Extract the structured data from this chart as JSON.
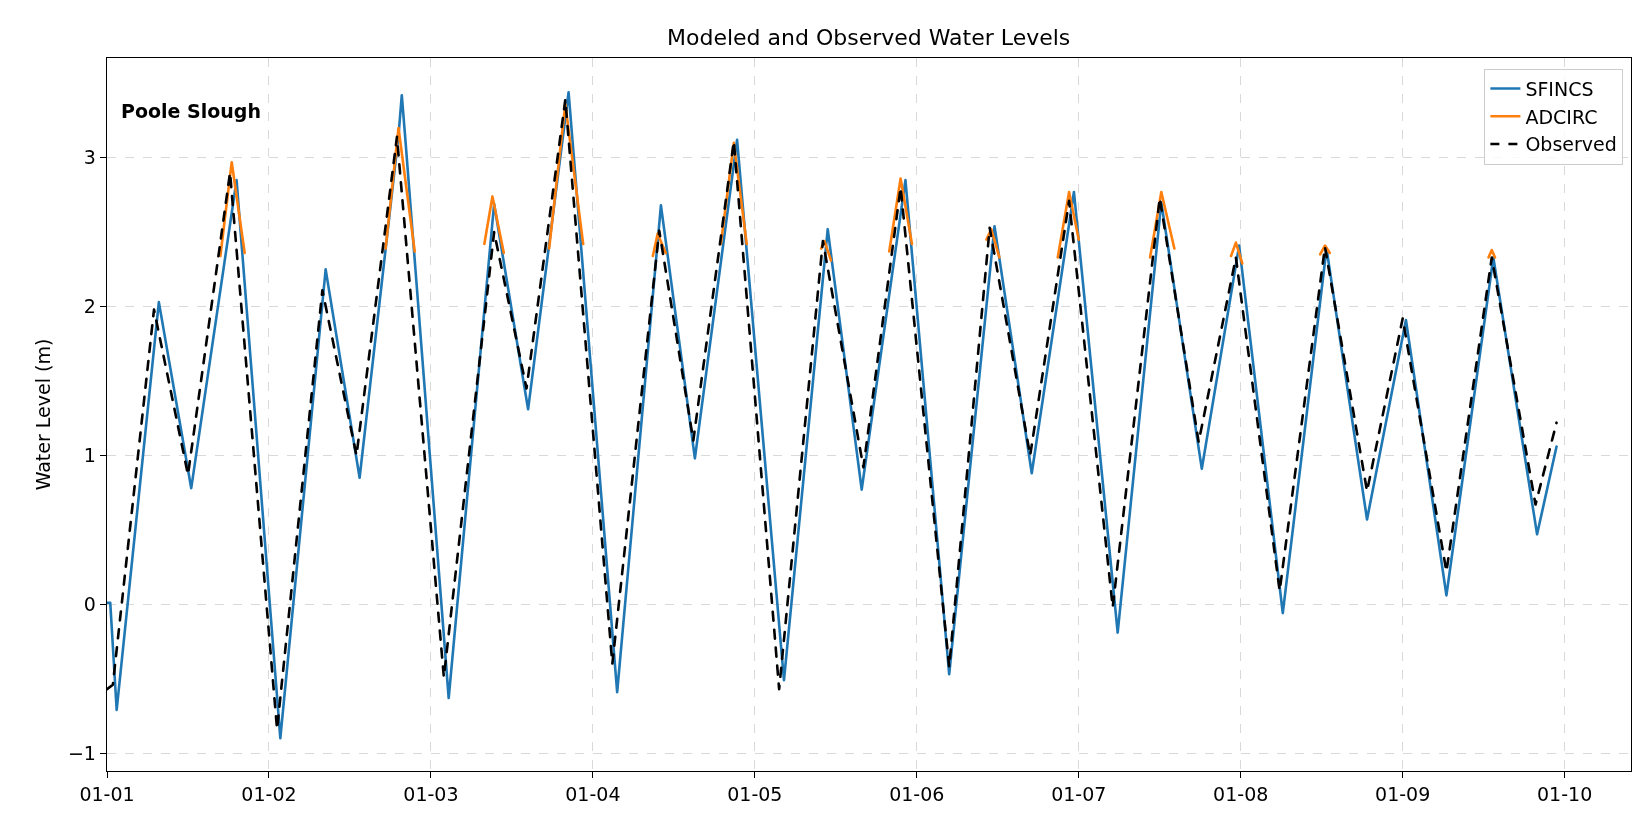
{
  "chart_data": {
    "type": "line",
    "title": "Modeled and Observed Water Levels",
    "ylabel": "Water Level (m)",
    "annotations": [
      "Poole Slough"
    ],
    "xlim": [
      "--01-01T00:00",
      "--01-10T09:50"
    ],
    "xticks": [
      {
        "value": "--01-01",
        "label": "01-01"
      },
      {
        "value": "--01-02",
        "label": "01-02"
      },
      {
        "value": "--01-03",
        "label": "01-03"
      },
      {
        "value": "--01-04",
        "label": "01-04"
      },
      {
        "value": "--01-05",
        "label": "01-05"
      },
      {
        "value": "--01-06",
        "label": "01-06"
      },
      {
        "value": "--01-07",
        "label": "01-07"
      },
      {
        "value": "--01-08",
        "label": "01-08"
      },
      {
        "value": "--01-09",
        "label": "01-09"
      },
      {
        "value": "--01-10",
        "label": "01-10"
      }
    ],
    "ylim": [
      -1.12,
      3.67
    ],
    "yticks": [
      {
        "value": -1,
        "label": "−1"
      },
      0,
      1,
      2,
      3
    ],
    "grid": true,
    "legend": "top right",
    "series": [
      {
        "name": "SFINCS",
        "color": "#1f77b4",
        "line_style": "solid",
        "x": [
          "--01-01T00:00",
          "--01-01T00:29",
          "--01-01T01:26",
          "--01-01T07:41",
          "--01-01T12:29",
          "--01-01T19:12",
          "--01-02T01:41",
          "--01-02T08:24",
          "--01-02T13:26",
          "--01-02T19:12",
          "--01-02T19:41",
          "--01-02T20:10",
          "--01-03T02:38",
          "--01-03T09:22",
          "--01-03T14:24",
          "--01-03T20:24",
          "--01-04T03:36",
          "--01-04T10:05",
          "--01-04T15:07",
          "--01-04T21:22",
          "--01-05T04:19",
          "--01-05T10:48",
          "--01-05T15:50",
          "--01-05T22:19",
          "--01-06T04:48",
          "--01-06T11:31",
          "--01-06T17:02",
          "--01-06T23:17",
          "--01-07T05:46",
          "--01-07T12:14",
          "--01-07T18:14",
          "--01-07T23:46",
          "--01-08T06:14",
          "--01-08T12:43",
          "--01-08T18:43",
          "--01-09T00:29",
          "--01-09T06:29",
          "--01-09T13:26",
          "--01-09T19:55",
          "--01-09T22:48"
        ],
        "values": [
          0.01,
          0.01,
          -0.71,
          2.03,
          0.78,
          2.85,
          -0.9,
          2.25,
          0.85,
          3.15,
          3.42,
          3.15,
          -0.63,
          2.69,
          1.31,
          3.44,
          -0.59,
          2.68,
          0.98,
          3.12,
          -0.51,
          2.52,
          0.77,
          2.85,
          -0.47,
          2.54,
          0.88,
          2.77,
          -0.19,
          2.7,
          0.91,
          2.41,
          -0.06,
          2.39,
          0.57,
          1.91,
          0.06,
          2.33,
          0.47,
          1.06
        ]
      },
      {
        "name": "ADCIRC",
        "color": "#ff7f0e",
        "line_style": "solid",
        "x": [
          "--01-01T16:48",
          "--01-01T18:29",
          "--01-01T20:24",
          "--01-01T20:38",
          "--01-02T17:17",
          "--01-02T19:12",
          "--01-02T21:36",
          "--01-02T21:50",
          "--01-03T07:55",
          "--01-03T09:07",
          "--01-03T10:48",
          "--01-03T11:02",
          "--01-03T17:31",
          "--01-03T19:55",
          "--01-03T22:34",
          "--01-03T22:48",
          "--01-04T08:53",
          "--01-04T09:36",
          "--01-04T10:48",
          "--01-04T11:02",
          "--01-04T18:58",
          "--01-04T20:53",
          "--01-04T22:48",
          "--01-04T23:02",
          "--01-05T09:50",
          "--01-05T10:19",
          "--01-05T11:17",
          "--01-05T11:31",
          "--01-05T19:55",
          "--01-05T21:36",
          "--01-05T23:17",
          "--01-05T23:31",
          "--01-06T10:19",
          "--01-06T11:02",
          "--01-06T12:14",
          "--01-06T12:29",
          "--01-06T20:53",
          "--01-06T22:34",
          "--01-07T00:00",
          "--01-07T00:14",
          "--01-07T10:34",
          "--01-07T12:14",
          "--01-07T14:10",
          "--01-07T14:24",
          "--01-07T22:34",
          "--01-07T23:17",
          "--01-08T00:14",
          "--01-08T00:29",
          "--01-08T11:46",
          "--01-08T12:29",
          "--01-08T13:12",
          "--01-08T13:26",
          "--01-09T12:43",
          "--01-09T13:12",
          "--01-09T13:41"
        ],
        "values": [
          2.34,
          2.97,
          2.36,
          null,
          2.39,
          3.2,
          2.37,
          null,
          2.42,
          2.74,
          2.36,
          null,
          2.39,
          3.36,
          2.42,
          null,
          2.34,
          2.49,
          2.36,
          null,
          2.42,
          3.1,
          2.42,
          null,
          2.39,
          2.44,
          2.31,
          null,
          2.37,
          2.86,
          2.42,
          null,
          2.45,
          2.52,
          2.33,
          null,
          2.33,
          2.77,
          2.45,
          null,
          2.33,
          2.77,
          2.39,
          null,
          2.34,
          2.43,
          2.29,
          null,
          2.35,
          2.41,
          2.36,
          null,
          2.33,
          2.38,
          2.33
        ]
      },
      {
        "name": "Observed",
        "color": "#000000",
        "line_style": "dashed",
        "x": [
          "--01-01T00:00",
          "--01-01T00:52",
          "--01-01T06:58",
          "--01-01T12:00",
          "--01-01T18:14",
          "--01-02T01:12",
          "--01-02T07:55",
          "--01-02T12:58",
          "--01-02T18:58",
          "--01-03T01:55",
          "--01-03T09:22",
          "--01-03T14:10",
          "--01-03T19:55",
          "--01-04T02:53",
          "--01-04T09:50",
          "--01-04T14:53",
          "--01-04T20:53",
          "--01-05T03:36",
          "--01-05T10:05",
          "--01-05T16:05",
          "--01-05T21:36",
          "--01-06T04:48",
          "--01-06T10:48",
          "--01-06T16:48",
          "--01-06T22:34",
          "--01-07T05:02",
          "--01-07T12:00",
          "--01-07T17:46",
          "--01-07T23:17",
          "--01-08T05:46",
          "--01-08T12:29",
          "--01-08T18:43",
          "--01-09T00:00",
          "--01-09T06:29",
          "--01-09T13:12",
          "--01-09T19:41",
          "--01-09T22:48"
        ],
        "values": [
          -0.57,
          -0.54,
          1.98,
          0.87,
          2.9,
          -0.84,
          2.11,
          1.0,
          3.14,
          -0.49,
          2.5,
          1.45,
          3.39,
          -0.4,
          2.51,
          1.1,
          3.11,
          -0.57,
          2.44,
          0.92,
          2.8,
          -0.42,
          2.53,
          1.0,
          2.71,
          -0.02,
          2.73,
          1.09,
          2.33,
          0.09,
          2.4,
          0.76,
          1.92,
          0.22,
          2.33,
          0.67,
          1.22
        ]
      }
    ]
  }
}
